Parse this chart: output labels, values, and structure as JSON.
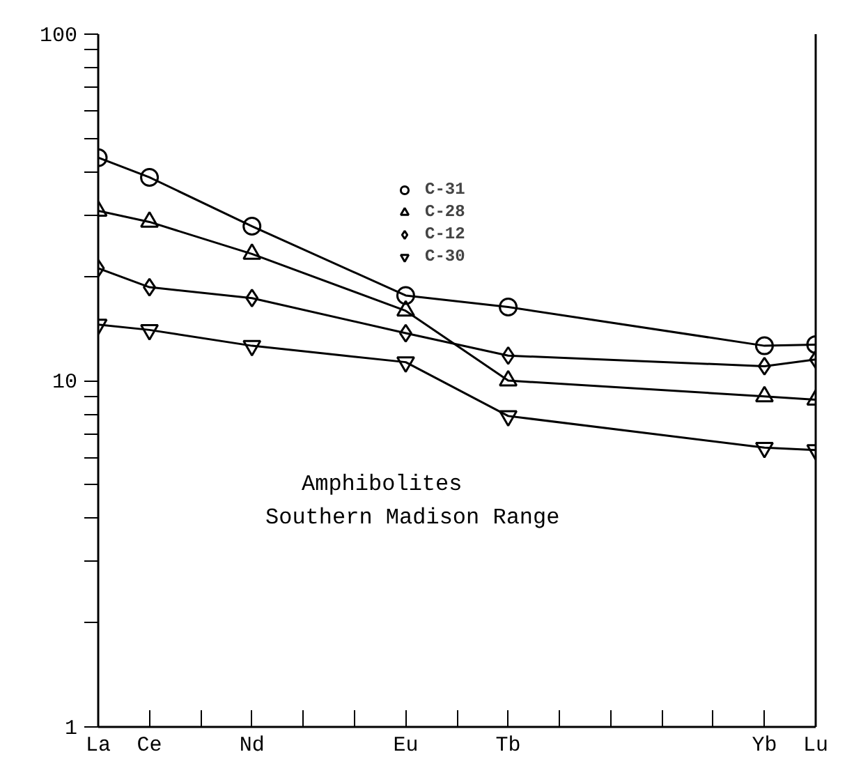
{
  "chart_data": {
    "type": "line",
    "categories": [
      "La",
      "Ce",
      null,
      "Nd",
      null,
      null,
      "Eu",
      null,
      "Tb",
      null,
      null,
      null,
      null,
      "Yb",
      "Lu"
    ],
    "ylim": [
      1,
      100
    ],
    "yticks": [
      1,
      {
        "value": 2,
        "label": null
      },
      {
        "value": 3,
        "label": null
      },
      {
        "value": 4,
        "label": null
      },
      {
        "value": 5,
        "label": null
      },
      {
        "value": 6,
        "label": null
      },
      {
        "value": 7,
        "label": null
      },
      {
        "value": 8,
        "label": null
      },
      {
        "value": 9,
        "label": null
      },
      10,
      {
        "value": 20,
        "label": null
      },
      {
        "value": 30,
        "label": null
      },
      {
        "value": 40,
        "label": null
      },
      {
        "value": 50,
        "label": null
      },
      {
        "value": 60,
        "label": null
      },
      {
        "value": 70,
        "label": null
      },
      {
        "value": 80,
        "label": null
      },
      {
        "value": 90,
        "label": null
      },
      100
    ],
    "log": true,
    "legend": "top",
    "line_style": "solid",
    "series": [
      {
        "name": "C-31",
        "color": "#000000",
        "marker": "circle",
        "values": [
          44,
          38.6,
          null,
          27.9,
          null,
          null,
          17.6,
          null,
          16.3,
          null,
          null,
          null,
          null,
          12.6,
          12.7
        ]
      },
      {
        "name": "C-28",
        "color": "#000000",
        "marker": "triangle",
        "values": [
          30.9,
          28.7,
          null,
          23.2,
          null,
          null,
          15.9,
          null,
          10.0,
          null,
          null,
          null,
          null,
          9.0,
          8.8
        ]
      },
      {
        "name": "C-12",
        "color": "#000000",
        "marker": "diamond",
        "values": [
          21.1,
          18.6,
          null,
          17.3,
          null,
          null,
          13.7,
          null,
          11.8,
          null,
          null,
          null,
          null,
          11.0,
          11.5
        ]
      },
      {
        "name": "C-30",
        "color": "#000000",
        "marker": "triangle",
        "values": [
          14.5,
          14.0,
          null,
          12.6,
          null,
          null,
          11.3,
          null,
          7.9,
          null,
          null,
          null,
          null,
          6.4,
          6.3
        ]
      }
    ],
    "annotations": [
      "Amphibolites",
      "Southern Madison Range"
    ]
  }
}
